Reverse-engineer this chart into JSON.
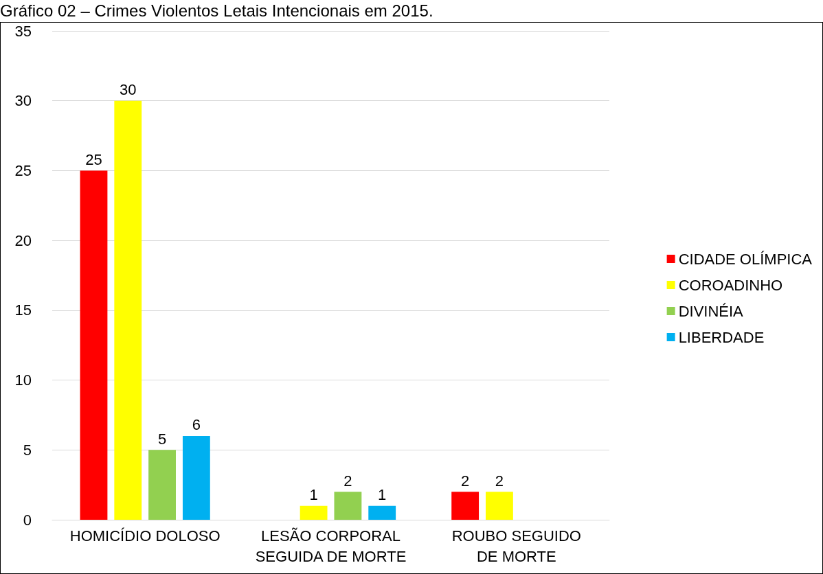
{
  "chart_data": {
    "type": "bar",
    "title": "Gráfico 02 – Crimes Violentos Letais Intencionais em 2015.",
    "categories": [
      "HOMICÍDIO DOLOSO",
      "LESÃO CORPORAL\nSEGUIDA DE MORTE",
      "ROUBO SEGUIDO\nDE MORTE"
    ],
    "series": [
      {
        "name": "CIDADE OLÍMPICA",
        "color": "#ff0000",
        "values": [
          25,
          null,
          2
        ]
      },
      {
        "name": "COROADINHO",
        "color": "#ffff00",
        "values": [
          30,
          1,
          2
        ]
      },
      {
        "name": "DIVINÉIA",
        "color": "#92d050",
        "values": [
          5,
          2,
          null
        ]
      },
      {
        "name": "LIBERDADE",
        "color": "#00b0f0",
        "values": [
          6,
          1,
          null
        ]
      }
    ],
    "ylim": [
      0,
      35
    ],
    "yticks": [
      0,
      5,
      10,
      15,
      20,
      25,
      30,
      35
    ],
    "grid": "y",
    "legend": "right",
    "data_labels": true
  }
}
